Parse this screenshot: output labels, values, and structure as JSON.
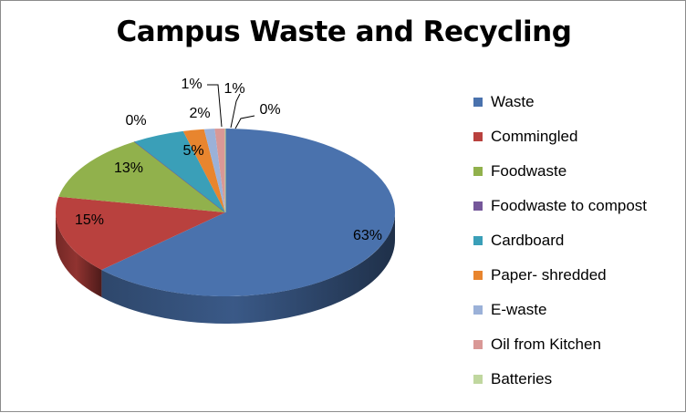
{
  "chart_data": {
    "type": "pie",
    "title": "Campus Waste and Recycling",
    "legend_position": "right",
    "series": [
      {
        "name": "Waste",
        "value": 63,
        "label": "63%",
        "color": "#4a72ad"
      },
      {
        "name": "Commingled",
        "value": 15,
        "label": "15%",
        "color": "#b9413e"
      },
      {
        "name": "Foodwaste",
        "value": 13,
        "label": "13%",
        "color": "#91b14c"
      },
      {
        "name": "Foodwaste to compost",
        "value": 0,
        "label": "0%",
        "color": "#75579a"
      },
      {
        "name": "Cardboard",
        "value": 5,
        "label": "5%",
        "color": "#3a9fb8"
      },
      {
        "name": "Paper- shredded",
        "value": 2,
        "label": "2%",
        "color": "#e8852e"
      },
      {
        "name": "E-waste",
        "value": 1,
        "label": "1%",
        "color": "#9bb1d8"
      },
      {
        "name": "Oil from Kitchen",
        "value": 1,
        "label": "1%",
        "color": "#d99896"
      },
      {
        "name": "Batteries",
        "value": 0,
        "label": "0%",
        "color": "#c0d79f"
      }
    ]
  }
}
